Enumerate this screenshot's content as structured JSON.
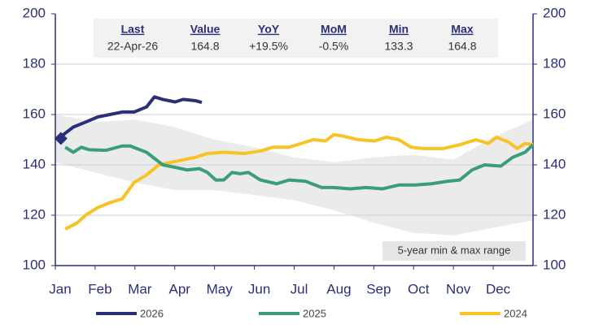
{
  "chart_data": {
    "type": "line",
    "xlim": [
      0,
      12
    ],
    "xticks": [
      {
        "value": 0,
        "label": "Jan"
      },
      {
        "value": 1,
        "label": "Feb"
      },
      {
        "value": 2,
        "label": "Mar"
      },
      {
        "value": 3,
        "label": "Apr"
      },
      {
        "value": 4,
        "label": "May"
      },
      {
        "value": 5,
        "label": "Jun"
      },
      {
        "value": 6,
        "label": "Jul"
      },
      {
        "value": 7,
        "label": "Aug"
      },
      {
        "value": 8,
        "label": "Sep"
      },
      {
        "value": 9,
        "label": "Oct"
      },
      {
        "value": 10,
        "label": "Nov"
      },
      {
        "value": 11,
        "label": "Dec"
      }
    ],
    "ylim": [
      100,
      200
    ],
    "yticks": [
      100,
      120,
      140,
      160,
      180,
      200
    ],
    "y2lim": [
      100,
      200
    ],
    "y2ticks": [
      100,
      120,
      140,
      160,
      180,
      200
    ],
    "grid": true,
    "range": {
      "name": "5-year min & max range",
      "color": "#ebebeb",
      "x": [
        0,
        1,
        2,
        3,
        4,
        5,
        6,
        7,
        8,
        9,
        10,
        11,
        12
      ],
      "min": [
        141,
        137,
        133,
        130,
        130,
        128,
        126,
        122,
        117,
        113,
        112,
        115,
        118
      ],
      "max": [
        160,
        157,
        158,
        155,
        150,
        147,
        143,
        141,
        143,
        144,
        142,
        151,
        158
      ]
    },
    "series": [
      {
        "name": "2026",
        "color": "#2b2f7a",
        "x": [
          0.14,
          0.2,
          0.45,
          0.76,
          1.06,
          1.37,
          1.68,
          1.98,
          2.29,
          2.49,
          2.7,
          3.01,
          3.21,
          3.52,
          3.68
        ],
        "values": [
          150.5,
          152,
          155,
          157,
          159,
          160,
          161,
          161,
          163,
          167,
          166,
          165,
          166,
          165.5,
          164.8
        ]
      },
      {
        "name": "2025",
        "color": "#3a9e78",
        "x": [
          0.25,
          0.45,
          0.65,
          0.86,
          1.27,
          1.68,
          1.88,
          2.29,
          2.7,
          3.01,
          3.31,
          3.62,
          3.82,
          4.03,
          4.23,
          4.44,
          4.64,
          4.85,
          5.15,
          5.56,
          5.87,
          6.28,
          6.69,
          6.99,
          7.4,
          7.81,
          8.22,
          8.63,
          9.04,
          9.45,
          9.86,
          10.16,
          10.47,
          10.78,
          11.19,
          11.49,
          11.8,
          12.0
        ],
        "values": [
          147,
          145,
          147,
          146,
          145.8,
          147.5,
          147.5,
          145,
          140,
          139,
          138,
          138.5,
          137,
          134,
          134,
          137,
          136.5,
          137,
          134,
          132.5,
          134,
          133.5,
          131,
          131,
          130.5,
          131,
          130.5,
          132,
          132,
          132.5,
          133.5,
          134,
          138,
          140,
          139.5,
          143,
          145,
          148
        ]
      },
      {
        "name": "2024",
        "color": "#f7c325",
        "x": [
          0.25,
          0.55,
          0.76,
          1.06,
          1.37,
          1.68,
          1.98,
          2.29,
          2.6,
          2.9,
          3.21,
          3.52,
          3.82,
          4.23,
          4.74,
          5.15,
          5.46,
          5.87,
          6.18,
          6.48,
          6.79,
          6.99,
          7.2,
          7.61,
          8.02,
          8.32,
          8.63,
          8.94,
          9.24,
          9.75,
          10.16,
          10.57,
          10.88,
          11.08,
          11.39,
          11.6,
          11.8,
          12.0
        ],
        "values": [
          114.5,
          117,
          120,
          123,
          125,
          126.5,
          133,
          136,
          140,
          141,
          142,
          143,
          144.5,
          145,
          144.5,
          145.5,
          147,
          147,
          148.5,
          150,
          149.5,
          152,
          151.5,
          150,
          149.5,
          151,
          150,
          147,
          146.5,
          146.5,
          148,
          150,
          148.5,
          151,
          149,
          146.5,
          148.5,
          148
        ]
      }
    ],
    "table": {
      "columns": [
        "Last",
        "Value",
        "YoY",
        "MoM",
        "Min",
        "Max"
      ],
      "values": [
        "22-Apr-26",
        "164.8",
        "+19.5%",
        "-0.5%",
        "133.3",
        "164.8"
      ]
    }
  }
}
